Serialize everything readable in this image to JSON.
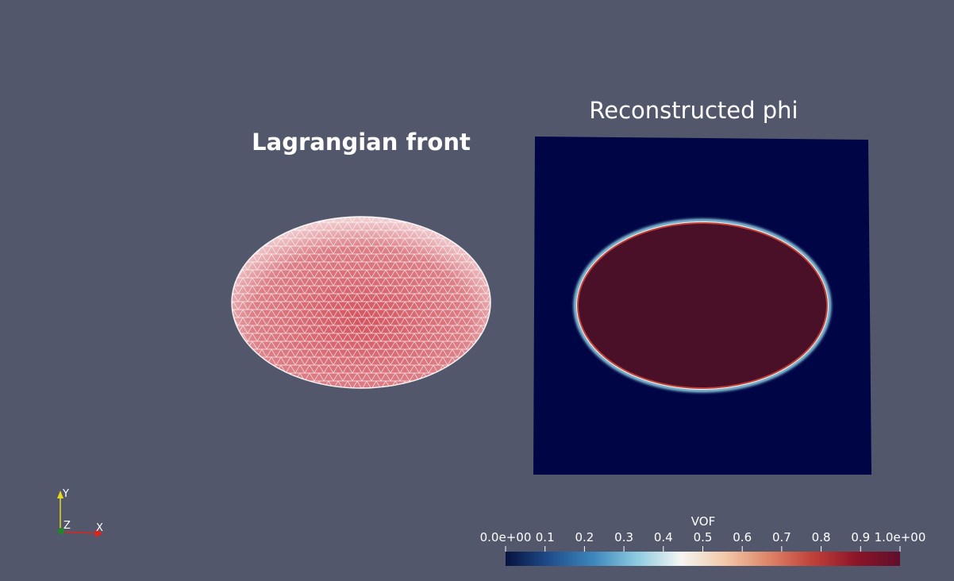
{
  "left_panel": {
    "title": "Lagrangian front"
  },
  "right_panel": {
    "title": "Reconstructed phi"
  },
  "colorbar": {
    "title": "VOF",
    "min": 0.0,
    "max": 1.0,
    "ticks": [
      {
        "value": 0.0,
        "label": "0.0e+00"
      },
      {
        "value": 0.1,
        "label": "0.1"
      },
      {
        "value": 0.2,
        "label": "0.2"
      },
      {
        "value": 0.3,
        "label": "0.3"
      },
      {
        "value": 0.4,
        "label": "0.4"
      },
      {
        "value": 0.5,
        "label": "0.5"
      },
      {
        "value": 0.6,
        "label": "0.6"
      },
      {
        "value": 0.7,
        "label": "0.7"
      },
      {
        "value": 0.8,
        "label": "0.8"
      },
      {
        "value": 0.9,
        "label": "0.9"
      },
      {
        "value": 1.0,
        "label": "1.0e+00"
      }
    ],
    "colors": [
      "#07123f",
      "#1f4e8c",
      "#3c86bb",
      "#8ccbe0",
      "#f4f5f2",
      "#f1c9a8",
      "#de8468",
      "#c1413a",
      "#8d1528",
      "#5f0f2d"
    ]
  },
  "orientation_axes": {
    "x_label": "X",
    "y_label": "Y",
    "z_label": "Z",
    "x_color": "#e1231c",
    "y_color": "#e5d91e",
    "z_color": "#1f8a2a"
  },
  "colors": {
    "background": "#52576b",
    "domain_background": "#000545",
    "droplet_fill": "#4a1028",
    "mesh_fill": "#d4666f",
    "mesh_line": "#ffffff"
  }
}
